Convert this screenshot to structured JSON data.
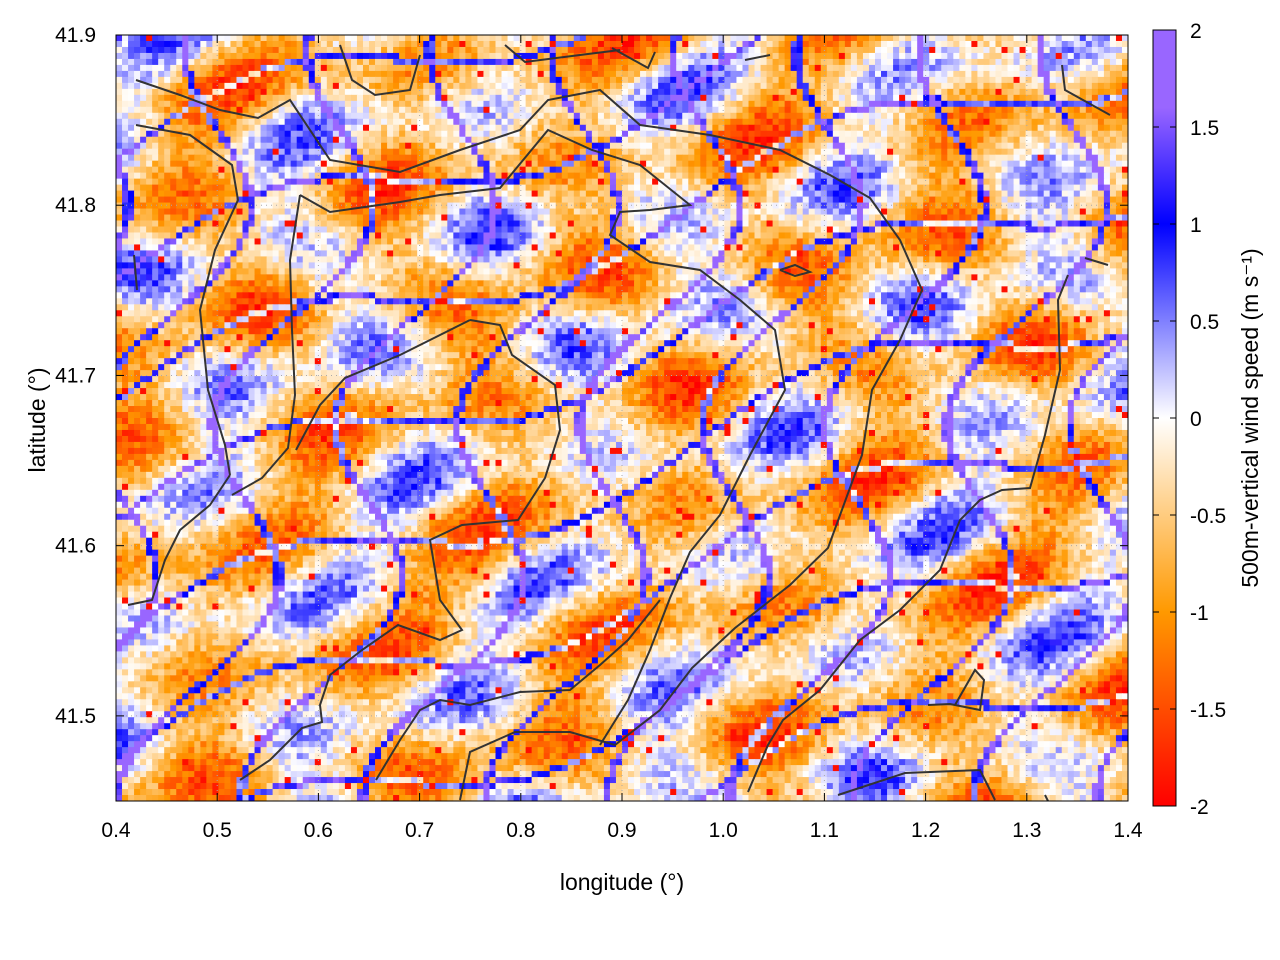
{
  "chart_data": {
    "type": "heatmap",
    "title": "",
    "xlabel": "longitude (°)",
    "ylabel": "latitude (°)",
    "colorbar_label": "500m-vertical wind speed (m s⁻¹)",
    "xlim": [
      0.4,
      1.4
    ],
    "ylim": [
      41.45,
      41.9
    ],
    "x_ticks": [
      "0.4",
      "0.5",
      "0.6",
      "0.7",
      "0.8",
      "0.9",
      "1.0",
      "1.1",
      "1.2",
      "1.3",
      "1.4"
    ],
    "y_ticks": [
      "41.5",
      "41.6",
      "41.7",
      "41.8",
      "41.9"
    ],
    "colorbar_range": [
      -2,
      2
    ],
    "colorbar_ticks": [
      "2",
      "1.5",
      "1",
      "0.5",
      "0",
      "-0.5",
      "-1",
      "-1.5",
      "-2"
    ],
    "colormap": [
      "#ff0000",
      "#ff9900",
      "#ffffff",
      "#0000ff",
      "#9966ff"
    ],
    "grid": true,
    "overlay": "coastline and administrative boundary lines (dark gray)",
    "contour_color": "#333333"
  }
}
